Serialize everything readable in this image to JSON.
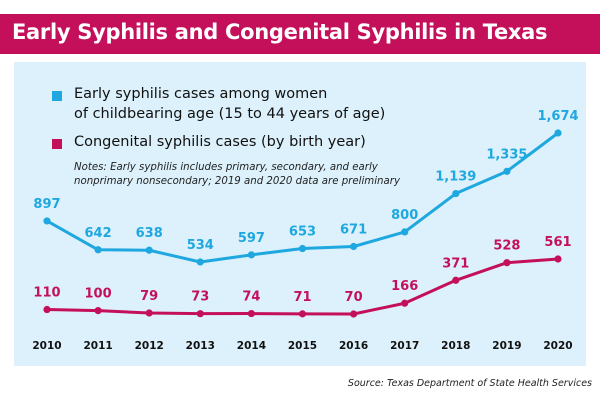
{
  "header": {
    "title": "Early Syphilis and Congenital Syphilis  in Texas"
  },
  "legend": {
    "early_line1": "Early syphilis cases among women",
    "early_line2": "of childbearing age (15 to 44 years of age)",
    "congenital": "Congenital syphilis cases (by birth year)"
  },
  "notes": {
    "line1": "Notes: Early syphilis includes primary, secondary, and early",
    "line2": "nonprimary nonsecondary; 2019 and 2020 data are preliminary"
  },
  "source": "Source: Texas Department of State Health Services",
  "colors": {
    "early": "#1fa7e0",
    "congenital": "#c4105a",
    "panel": "#dcf1fb",
    "header": "#c4105a"
  },
  "chart_data": {
    "type": "line",
    "title": "Early Syphilis and Congenital Syphilis  in Texas",
    "x": [
      "2010",
      "2011",
      "2012",
      "2013",
      "2014",
      "2015",
      "2016",
      "2017",
      "2018",
      "2019",
      "2020"
    ],
    "series": [
      {
        "name": "Early syphilis cases among women of childbearing age (15 to 44 years of age)",
        "color": "#1fa7e0",
        "values": [
          897,
          642,
          638,
          534,
          597,
          653,
          671,
          800,
          1139,
          1335,
          1674
        ],
        "labels": [
          "897",
          "642",
          "638",
          "534",
          "597",
          "653",
          "671",
          "800",
          "1,139",
          "1,335",
          "1,674"
        ]
      },
      {
        "name": "Congenital syphilis cases (by birth year)",
        "color": "#c4105a",
        "values": [
          110,
          100,
          79,
          73,
          74,
          71,
          70,
          166,
          371,
          528,
          561
        ],
        "labels": [
          "110",
          "100",
          "79",
          "73",
          "74",
          "71",
          "70",
          "166",
          "371",
          "528",
          "561"
        ]
      }
    ],
    "xlabel": "",
    "ylabel": "",
    "grid": false,
    "legend_position": "top-left"
  }
}
